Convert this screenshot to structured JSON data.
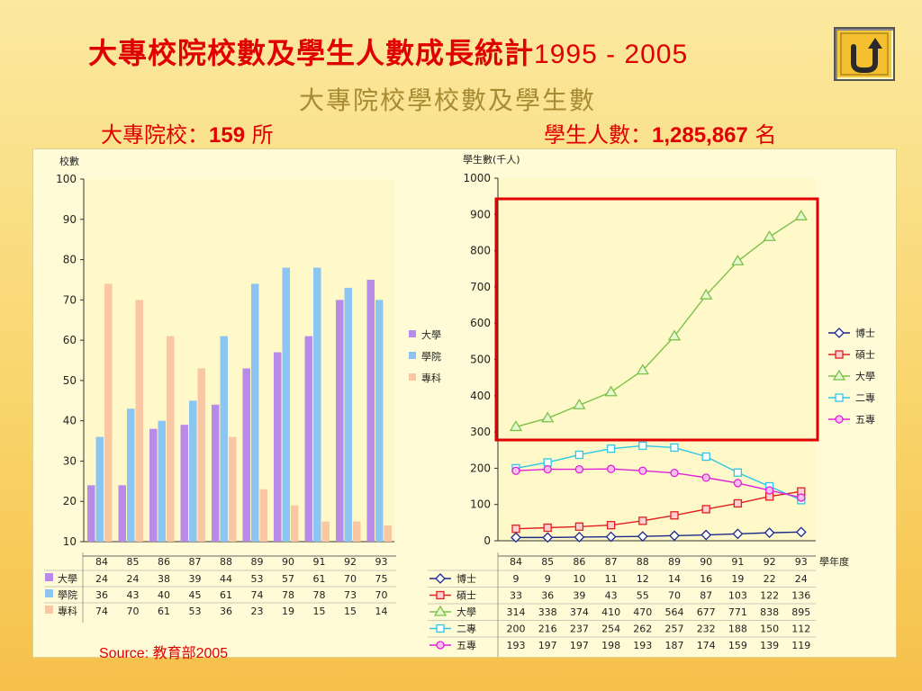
{
  "slide": {
    "title": "大專校院校數及學生人數成長統計",
    "title_years": "1995 - 2005",
    "subtitle": "大專院校學校數及學生數",
    "schools_label": "大專院校：",
    "schools_value": "159",
    "schools_unit": " 所",
    "students_label": "學生人數：",
    "students_value": "1,285,867",
    "students_unit": " 名",
    "source": "Source: 教育部2005",
    "back_icon": "u-turn-arrow-icon"
  },
  "colors": {
    "univ": "#b98be8",
    "college": "#8cc4f2",
    "junior": "#f9c7a1",
    "phd": "#1c2a8a",
    "master": "#e02020",
    "undergrad": "#7bc24a",
    "two_year": "#2ec7e8",
    "five_year": "#e020d8",
    "highlight": "#e00000"
  },
  "chart_data": [
    {
      "type": "bar",
      "ylabel": "校數",
      "ylim": [
        10,
        100
      ],
      "yticks": [
        10,
        20,
        30,
        40,
        50,
        60,
        70,
        80,
        90,
        100
      ],
      "categories": [
        "84",
        "85",
        "86",
        "87",
        "88",
        "89",
        "90",
        "91",
        "92",
        "93"
      ],
      "series": [
        {
          "name": "大學",
          "values": [
            24,
            24,
            38,
            39,
            44,
            53,
            57,
            61,
            70,
            75
          ]
        },
        {
          "name": "學院",
          "values": [
            36,
            43,
            40,
            45,
            61,
            74,
            78,
            78,
            73,
            70
          ]
        },
        {
          "name": "專科",
          "values": [
            74,
            70,
            61,
            53,
            36,
            23,
            19,
            15,
            15,
            14
          ]
        }
      ],
      "legend": [
        "大學",
        "學院",
        "專科"
      ],
      "legend_position": "right",
      "table": {
        "rows": [
          {
            "label": "大學",
            "values": [
              "24",
              "24",
              "38",
              "39",
              "44",
              "53",
              "57",
              "61",
              "70",
              "75"
            ]
          },
          {
            "label": "學院",
            "values": [
              "36",
              "43",
              "40",
              "45",
              "61",
              "74",
              "78",
              "78",
              "73",
              "70"
            ]
          },
          {
            "label": "專科",
            "values": [
              "74",
              "70",
              "61",
              "53",
              "36",
              "23",
              "19",
              "15",
              "15",
              "14"
            ]
          }
        ]
      }
    },
    {
      "type": "line",
      "ylabel": "學生數(千人)",
      "xlabel": "學年度",
      "ylim": [
        0,
        1000
      ],
      "yticks": [
        0,
        100,
        200,
        300,
        400,
        500,
        600,
        700,
        800,
        900,
        1000
      ],
      "categories": [
        "84",
        "85",
        "86",
        "87",
        "88",
        "89",
        "90",
        "91",
        "92",
        "93"
      ],
      "series": [
        {
          "name": "博士",
          "values": [
            9,
            9,
            10,
            11,
            12,
            14,
            16,
            19,
            22,
            24
          ]
        },
        {
          "name": "碩士",
          "values": [
            33,
            36,
            39,
            43,
            55,
            70,
            87,
            103,
            122,
            136
          ]
        },
        {
          "name": "大學",
          "values": [
            314,
            338,
            374,
            410,
            470,
            564,
            677,
            771,
            838,
            895
          ]
        },
        {
          "name": "二專",
          "values": [
            200,
            216,
            237,
            254,
            262,
            257,
            232,
            188,
            150,
            112
          ]
        },
        {
          "name": "五專",
          "values": [
            193,
            197,
            197,
            198,
            193,
            187,
            174,
            159,
            139,
            119
          ]
        }
      ],
      "legend_position": "right",
      "highlight_series": "大學",
      "table": {
        "rows": [
          {
            "label": "博士",
            "values": [
              "9",
              "9",
              "10",
              "11",
              "12",
              "14",
              "16",
              "19",
              "22",
              "24"
            ]
          },
          {
            "label": "碩士",
            "values": [
              "33",
              "36",
              "39",
              "43",
              "55",
              "70",
              "87",
              "103",
              "122",
              "136"
            ]
          },
          {
            "label": "大學",
            "values": [
              "314",
              "338",
              "374",
              "410",
              "470",
              "564",
              "677",
              "771",
              "838",
              "895"
            ]
          },
          {
            "label": "二專",
            "values": [
              "200",
              "216",
              "237",
              "254",
              "262",
              "257",
              "232",
              "188",
              "150",
              "112"
            ]
          },
          {
            "label": "五專",
            "values": [
              "193",
              "197",
              "197",
              "198",
              "193",
              "187",
              "174",
              "159",
              "139",
              "119"
            ]
          }
        ]
      }
    }
  ]
}
